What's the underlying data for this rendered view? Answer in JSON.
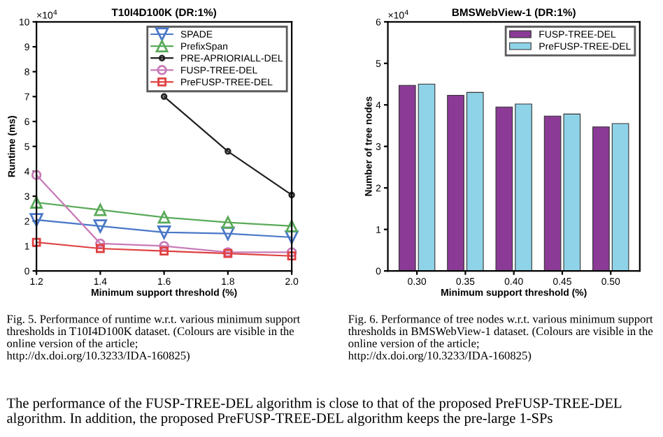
{
  "chart_data": [
    {
      "type": "line",
      "title": "T10I4D100K (DR:1%)",
      "xlabel": "Minimum support threshold (%)",
      "ylabel": "Runtime (ms)",
      "x": [
        1.2,
        1.4,
        1.6,
        1.8,
        2.0
      ],
      "xlim": [
        1.2,
        2.0
      ],
      "xticks": [
        1.2,
        1.4,
        1.6,
        1.8,
        {
          "value": 2.0,
          "label": "2.0"
        }
      ],
      "ylim": [
        0,
        10
      ],
      "yticks": [
        0,
        1,
        2,
        3,
        4,
        5,
        6,
        7,
        8,
        9,
        10
      ],
      "grid": false,
      "legend": "top right",
      "line_style": "solid",
      "series": [
        {
          "name": "SPADE",
          "color": "#4a78c8",
          "marker": "triangle_down",
          "values": [
            2.05,
            1.8,
            1.55,
            1.5,
            1.35
          ]
        },
        {
          "name": "PrefixSpan",
          "color": "#5aaa5a",
          "marker": "triangle",
          "values": [
            2.75,
            2.45,
            2.15,
            1.95,
            1.8
          ]
        },
        {
          "name": "PRE-APRIORIALL-DEL",
          "color": "#222222",
          "marker": "circle_small",
          "values": [
            null,
            null,
            7.0,
            4.8,
            3.05
          ]
        },
        {
          "name": "FUSP-TREE-DEL",
          "color": "#c87ab8",
          "marker": "circle",
          "values": [
            3.85,
            1.1,
            1.0,
            0.75,
            0.75
          ]
        },
        {
          "name": "PreFUSP-TREE-DEL",
          "color": "#e04040",
          "marker": "square",
          "values": [
            1.15,
            0.9,
            0.8,
            0.7,
            0.6
          ]
        }
      ],
      "annotations": [
        "×10$^{4}$",
        "Fig. 5. Performance of runtime w.r.t. various minimum support thresholds in T10I4D100K dataset. (Colours are visible in the online version of the article; http://dx.doi.org/10.3233/IDA-160825)"
      ]
    },
    {
      "type": "bar",
      "title": "BMSWebView-1 (DR:1%)",
      "xlabel": "Minimum support threshold (%)",
      "ylabel": "Number of tree nodes",
      "categories": [
        "0.30",
        "0.35",
        "0.40",
        "0.45",
        "0.50"
      ],
      "ylim": [
        0,
        6
      ],
      "yticks": [
        0,
        1,
        2,
        3,
        4,
        5,
        6
      ],
      "grid": false,
      "legend": "top right",
      "series": [
        {
          "name": "FUSP-TREE-DEL",
          "color": "#8b3a96",
          "values": [
            4.47,
            4.23,
            3.95,
            3.73,
            3.47
          ]
        },
        {
          "name": "PreFUSP-TREE-DEL",
          "color": "#8fd3e8",
          "values": [
            4.5,
            4.3,
            4.02,
            3.78,
            3.55
          ]
        }
      ],
      "annotations": [
        "×10$^{4}$",
        "Fig. 6. Performance of tree nodes w.r.t. various minimum support thresholds in BMSWebView-1 dataset. (Colours are visible in the online version of the article; http://dx.doi.org/10.3233/IDA-160825)",
        "The performance of the FUSP-TREE-DEL algorithm is close to that of the proposed PreFUSP-TREE-DEL algorithm. In addition, the proposed PreFUSP-TREE-DEL algorithm keeps the pre-large 1-SPs"
      ]
    }
  ]
}
